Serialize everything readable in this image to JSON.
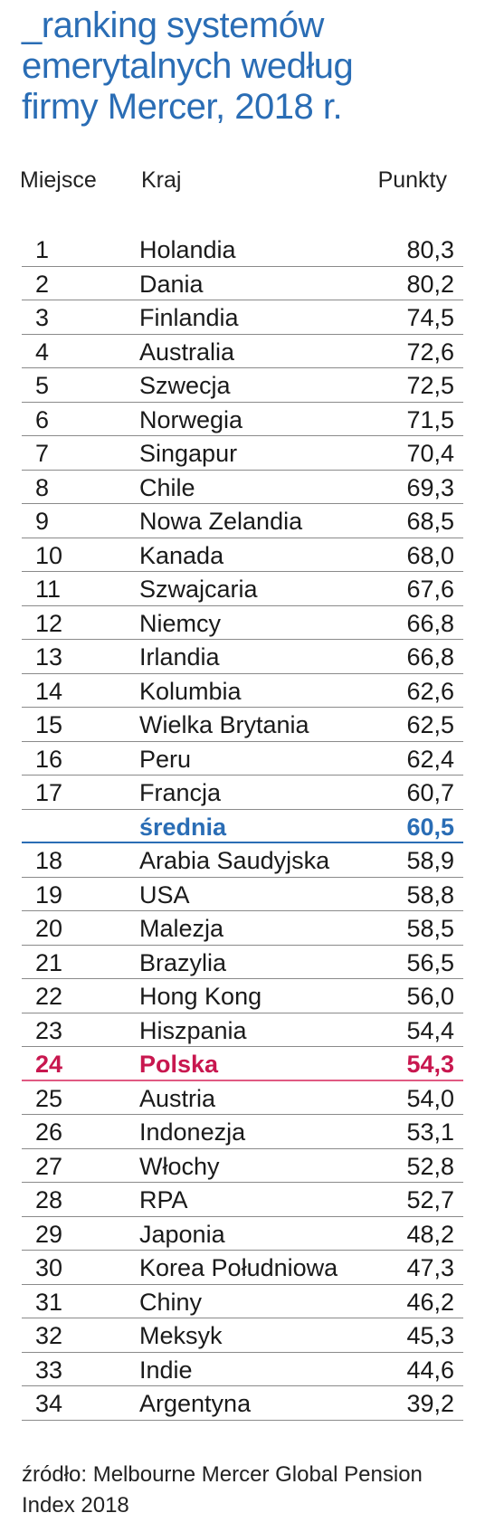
{
  "chart_data": {
    "type": "table",
    "title_lines": [
      "_ranking systemów",
      "emerytalnych według",
      "firmy Mercer, 2018 r."
    ],
    "columns": [
      "Miejsce",
      "Kraj",
      "Punkty"
    ],
    "rows": [
      {
        "rank": "1",
        "country": "Holandia",
        "points": "80,3"
      },
      {
        "rank": "2",
        "country": "Dania",
        "points": "80,2"
      },
      {
        "rank": "3",
        "country": "Finlandia",
        "points": "74,5"
      },
      {
        "rank": "4",
        "country": "Australia",
        "points": "72,6"
      },
      {
        "rank": "5",
        "country": "Szwecja",
        "points": "72,5"
      },
      {
        "rank": "6",
        "country": "Norwegia",
        "points": "71,5"
      },
      {
        "rank": "7",
        "country": "Singapur",
        "points": "70,4"
      },
      {
        "rank": "8",
        "country": "Chile",
        "points": "69,3"
      },
      {
        "rank": "9",
        "country": "Nowa Zelandia",
        "points": "68,5"
      },
      {
        "rank": "10",
        "country": "Kanada",
        "points": "68,0"
      },
      {
        "rank": "11",
        "country": "Szwajcaria",
        "points": "67,6"
      },
      {
        "rank": "12",
        "country": "Niemcy",
        "points": "66,8"
      },
      {
        "rank": "13",
        "country": "Irlandia",
        "points": "66,8"
      },
      {
        "rank": "14",
        "country": "Kolumbia",
        "points": "62,6"
      },
      {
        "rank": "15",
        "country": "Wielka Brytania",
        "points": "62,5"
      },
      {
        "rank": "16",
        "country": "Peru",
        "points": "62,4"
      },
      {
        "rank": "17",
        "country": "Francja",
        "points": "60,7"
      },
      {
        "rank": "",
        "country": "średnia",
        "points": "60,5",
        "highlight": "average"
      },
      {
        "rank": "18",
        "country": "Arabia Saudyjska",
        "points": "58,9"
      },
      {
        "rank": "19",
        "country": "USA",
        "points": "58,8"
      },
      {
        "rank": "20",
        "country": "Malezja",
        "points": "58,5"
      },
      {
        "rank": "21",
        "country": "Brazylia",
        "points": "56,5"
      },
      {
        "rank": "22",
        "country": "Hong Kong",
        "points": "56,0"
      },
      {
        "rank": "23",
        "country": "Hiszpania",
        "points": "54,4"
      },
      {
        "rank": "24",
        "country": "Polska",
        "points": "54,3",
        "highlight": "poland"
      },
      {
        "rank": "25",
        "country": "Austria",
        "points": "54,0"
      },
      {
        "rank": "26",
        "country": "Indonezja",
        "points": "53,1"
      },
      {
        "rank": "27",
        "country": "Włochy",
        "points": "52,8"
      },
      {
        "rank": "28",
        "country": "RPA",
        "points": "52,7"
      },
      {
        "rank": "29",
        "country": "Japonia",
        "points": "48,2"
      },
      {
        "rank": "30",
        "country": "Korea Południowa",
        "points": "47,3"
      },
      {
        "rank": "31",
        "country": "Chiny",
        "points": "46,2"
      },
      {
        "rank": "32",
        "country": "Meksyk",
        "points": "45,3"
      },
      {
        "rank": "33",
        "country": "Indie",
        "points": "44,6"
      },
      {
        "rank": "34",
        "country": "Argentyna",
        "points": "39,2"
      }
    ],
    "source": "źródło: Melbourne Mercer Global Pension Index 2018"
  },
  "colors": {
    "title": "#2a6db5",
    "average": "#2a6db5",
    "poland": "#c8174f",
    "poland_rule": "#e05a82",
    "rule": "#8a8a8a"
  }
}
